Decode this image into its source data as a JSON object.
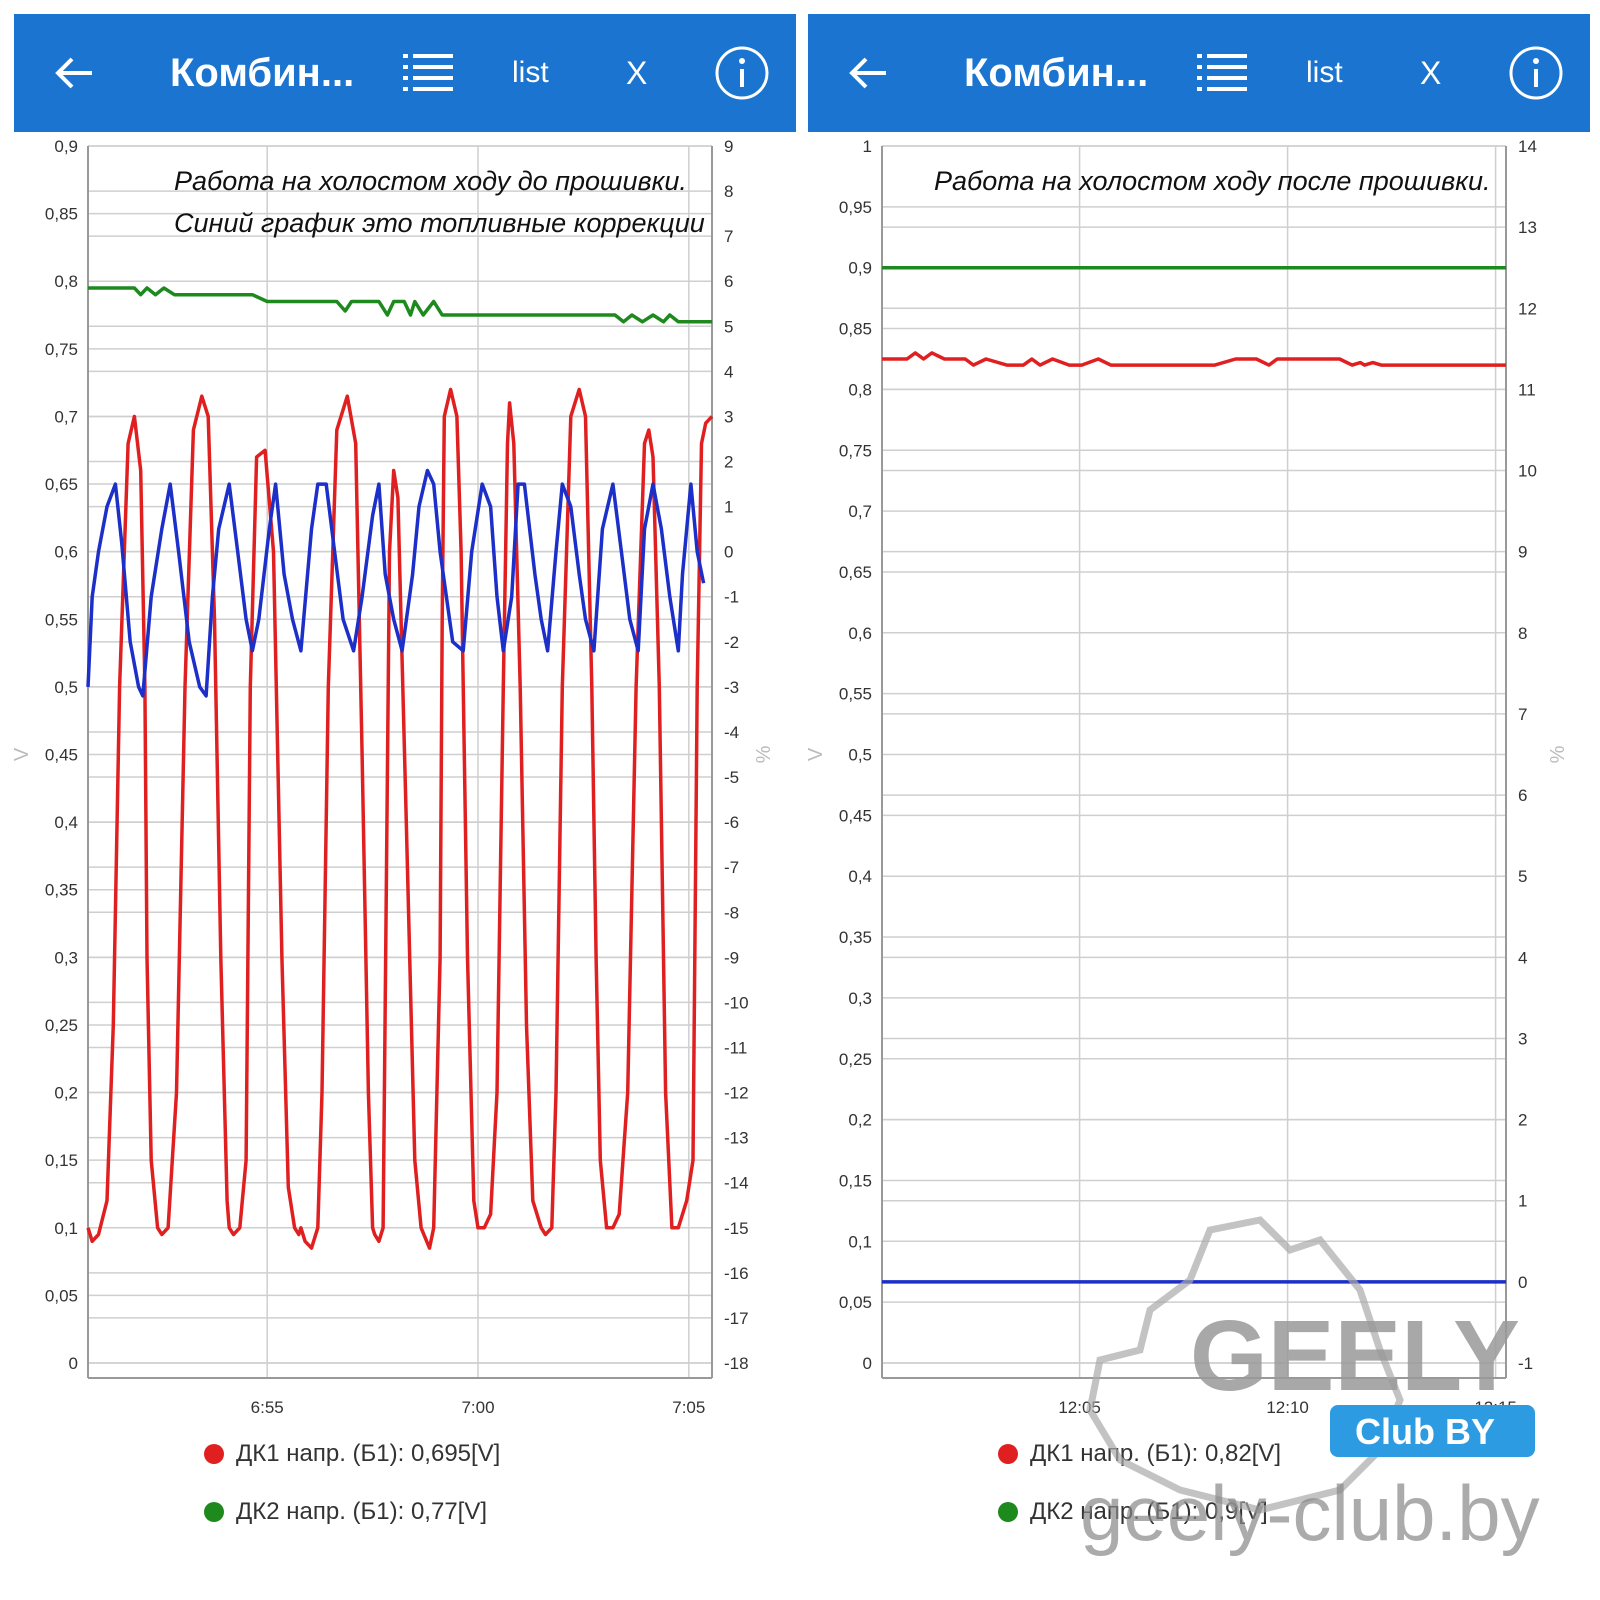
{
  "panels": [
    {
      "title": "Комбин...",
      "list_label": "list",
      "close_label": "X",
      "annotation": [
        "Работа на холостом ходу до прошивки.",
        "Синий график это топливные коррекции"
      ],
      "legend": [
        {
          "text": "ДК1 напр. (Б1): 0,695[V]",
          "color": "#e02020"
        },
        {
          "text": "ДК2 напр. (Б1): 0,77[V]",
          "color": "#1e8a1e"
        }
      ]
    },
    {
      "title": "Комбин...",
      "list_label": "list",
      "close_label": "X",
      "annotation": [
        "Работа на холостом ходу после прошивки."
      ],
      "legend": [
        {
          "text": "ДК1 напр. (Б1): 0,82[V]",
          "color": "#e02020"
        },
        {
          "text": "ДК2 напр. (Б1): 0,9[V]",
          "color": "#1e8a1e"
        }
      ]
    }
  ],
  "watermark": {
    "brand": "GEELY",
    "badge": "Club BY",
    "site": "geely-club.by"
  },
  "colors": {
    "appbar": "#1b75d0",
    "red": "#e02020",
    "green": "#1e8a1e",
    "blue": "#1c2fc8"
  },
  "chart_data": [
    {
      "type": "line",
      "x_unit": "minutes",
      "x_range": [
        6.5,
        21.3
      ],
      "x_ticks": [
        {
          "x": 10.75,
          "label": "6:55"
        },
        {
          "x": 15.75,
          "label": "7:00"
        },
        {
          "x": 20.75,
          "label": "7:05"
        }
      ],
      "y_left": {
        "label": "V",
        "range": [
          0,
          0.9
        ],
        "step": 0.05,
        "tick_labels": [
          "0",
          "0,05",
          "0,1",
          "0,15",
          "0,2",
          "0,25",
          "0,3",
          "0,35",
          "0,4",
          "0,45",
          "0,5",
          "0,55",
          "0,6",
          "0,65",
          "0,7",
          "0,75",
          "0,8",
          "0,85",
          "0,9"
        ]
      },
      "y_right": {
        "label": "%",
        "range": [
          -18,
          9
        ],
        "step": 1,
        "tick_labels": [
          "-18",
          "-17",
          "-16",
          "-15",
          "-14",
          "-13",
          "-12",
          "-11",
          "-10",
          "-9",
          "-8",
          "-7",
          "-6",
          "-5",
          "-4",
          "-3",
          "-2",
          "-1",
          "0",
          "1",
          "2",
          "3",
          "4",
          "5",
          "6",
          "7",
          "8",
          "9"
        ]
      },
      "series": [
        {
          "name": "ДК1 напр. (Б1)",
          "axis": "left",
          "color": "#e02020",
          "x": [
            6.5,
            6.6,
            6.75,
            6.95,
            7.1,
            7.25,
            7.45,
            7.6,
            7.75,
            7.85,
            7.9,
            8.0,
            8.15,
            8.25,
            8.4,
            8.6,
            8.8,
            9.0,
            9.2,
            9.35,
            9.5,
            9.65,
            9.8,
            9.85,
            9.95,
            10.1,
            10.25,
            10.35,
            10.5,
            10.7,
            10.9,
            11.1,
            11.25,
            11.4,
            11.5,
            11.55,
            11.65,
            11.8,
            11.95,
            12.05,
            12.2,
            12.4,
            12.65,
            12.85,
            13.0,
            13.15,
            13.25,
            13.3,
            13.4,
            13.5,
            13.65,
            13.75,
            13.85,
            14.05,
            14.25,
            14.4,
            14.6,
            14.7,
            14.85,
            14.9,
            14.95,
            15.1,
            15.25,
            15.35,
            15.5,
            15.65,
            15.75,
            15.9,
            16.05,
            16.2,
            16.35,
            16.45,
            16.5,
            16.6,
            16.75,
            16.9,
            17.05,
            17.25,
            17.35,
            17.5,
            17.6,
            17.75,
            17.95,
            18.15,
            18.3,
            18.45,
            18.55,
            18.65,
            18.8,
            18.95,
            19.1,
            19.3,
            19.5,
            19.7,
            19.8,
            19.9,
            20.05,
            20.2,
            20.35,
            20.5,
            20.7,
            20.85,
            20.95,
            21.05,
            21.15,
            21.3
          ],
          "y": [
            0.1,
            0.09,
            0.095,
            0.12,
            0.25,
            0.5,
            0.68,
            0.7,
            0.66,
            0.5,
            0.3,
            0.15,
            0.1,
            0.095,
            0.1,
            0.2,
            0.5,
            0.69,
            0.715,
            0.7,
            0.55,
            0.3,
            0.12,
            0.1,
            0.095,
            0.1,
            0.15,
            0.5,
            0.67,
            0.675,
            0.6,
            0.3,
            0.13,
            0.1,
            0.095,
            0.1,
            0.09,
            0.085,
            0.1,
            0.2,
            0.5,
            0.69,
            0.715,
            0.68,
            0.45,
            0.2,
            0.1,
            0.095,
            0.09,
            0.1,
            0.6,
            0.66,
            0.64,
            0.4,
            0.15,
            0.1,
            0.085,
            0.1,
            0.3,
            0.55,
            0.7,
            0.72,
            0.7,
            0.6,
            0.3,
            0.12,
            0.1,
            0.1,
            0.11,
            0.2,
            0.5,
            0.68,
            0.71,
            0.68,
            0.5,
            0.25,
            0.12,
            0.1,
            0.095,
            0.1,
            0.2,
            0.5,
            0.7,
            0.72,
            0.7,
            0.5,
            0.3,
            0.15,
            0.1,
            0.1,
            0.11,
            0.2,
            0.5,
            0.68,
            0.69,
            0.67,
            0.5,
            0.2,
            0.1,
            0.1,
            0.12,
            0.15,
            0.5,
            0.68,
            0.695,
            0.7
          ]
        },
        {
          "name": "ДК2 напр. (Б1)",
          "axis": "left",
          "color": "#1e8a1e",
          "x": [
            6.5,
            7.6,
            7.75,
            7.9,
            8.1,
            8.3,
            8.55,
            10.4,
            10.75,
            12.4,
            12.6,
            12.75,
            13.4,
            13.6,
            13.75,
            14.0,
            14.15,
            14.25,
            14.45,
            14.7,
            14.9,
            19.0,
            19.2,
            19.4,
            19.65,
            19.9,
            20.15,
            20.3,
            20.5,
            21.3
          ],
          "y": [
            0.795,
            0.795,
            0.79,
            0.795,
            0.79,
            0.795,
            0.79,
            0.79,
            0.785,
            0.785,
            0.778,
            0.785,
            0.785,
            0.775,
            0.785,
            0.785,
            0.775,
            0.785,
            0.775,
            0.785,
            0.775,
            0.775,
            0.77,
            0.775,
            0.77,
            0.775,
            0.77,
            0.775,
            0.77,
            0.77
          ]
        },
        {
          "name": "",
          "axis": "right",
          "color": "#1c2fc8",
          "x": [
            6.5,
            6.6,
            6.75,
            6.95,
            7.15,
            7.3,
            7.5,
            7.7,
            7.8,
            8.0,
            8.25,
            8.45,
            8.65,
            8.9,
            9.15,
            9.3,
            9.45,
            9.6,
            9.85,
            10.05,
            10.25,
            10.4,
            10.55,
            10.8,
            10.95,
            11.15,
            11.35,
            11.55,
            11.8,
            11.95,
            12.15,
            12.35,
            12.55,
            12.8,
            13.0,
            13.25,
            13.4,
            13.55,
            13.75,
            13.95,
            14.2,
            14.35,
            14.55,
            14.7,
            14.85,
            15.0,
            15.15,
            15.4,
            15.6,
            15.85,
            16.05,
            16.2,
            16.35,
            16.55,
            16.7,
            16.85,
            17.1,
            17.25,
            17.4,
            17.6,
            17.75,
            17.95,
            18.15,
            18.3,
            18.5,
            18.7,
            18.95,
            19.15,
            19.35,
            19.55,
            19.7,
            19.9,
            20.1,
            20.3,
            20.5,
            20.6,
            20.8,
            20.95,
            21.1
          ],
          "y": [
            -3.0,
            -1.0,
            0.0,
            1.0,
            1.5,
            0.2,
            -2.0,
            -3.0,
            -3.2,
            -1.0,
            0.5,
            1.5,
            0.0,
            -2.0,
            -3.0,
            -3.2,
            -1.0,
            0.5,
            1.5,
            0.0,
            -1.5,
            -2.2,
            -1.5,
            0.5,
            1.5,
            -0.5,
            -1.5,
            -2.2,
            0.5,
            1.5,
            1.5,
            0.0,
            -1.5,
            -2.2,
            -1.0,
            0.8,
            1.5,
            -0.5,
            -1.5,
            -2.2,
            -0.5,
            1.0,
            1.8,
            1.5,
            0.0,
            -1.0,
            -2.0,
            -2.2,
            0.0,
            1.5,
            1.0,
            -1.0,
            -2.2,
            -1.0,
            1.5,
            1.5,
            -0.5,
            -1.5,
            -2.2,
            0.0,
            1.5,
            1.0,
            -0.5,
            -1.5,
            -2.2,
            0.5,
            1.5,
            0.0,
            -1.5,
            -2.2,
            0.5,
            1.5,
            0.5,
            -1.0,
            -2.2,
            -0.5,
            1.5,
            0.0,
            -0.7
          ]
        }
      ]
    },
    {
      "type": "line",
      "x_unit": "minutes",
      "x_range": [
        0,
        15.0
      ],
      "x_ticks": [
        {
          "x": 4.75,
          "label": "12:05"
        },
        {
          "x": 9.75,
          "label": "12:10"
        },
        {
          "x": 14.75,
          "label": "12:15"
        }
      ],
      "y_left": {
        "label": "V",
        "range": [
          0,
          1.0
        ],
        "step": 0.05,
        "tick_labels": [
          "0",
          "0,05",
          "0,1",
          "0,15",
          "0,2",
          "0,25",
          "0,3",
          "0,35",
          "0,4",
          "0,45",
          "0,5",
          "0,55",
          "0,6",
          "0,65",
          "0,7",
          "0,75",
          "0,8",
          "0,85",
          "0,9",
          "0,95",
          "1"
        ]
      },
      "y_right": {
        "label": "%",
        "range": [
          -1,
          14
        ],
        "step": 1,
        "tick_labels": [
          "-1",
          "0",
          "1",
          "2",
          "3",
          "4",
          "5",
          "6",
          "7",
          "8",
          "9",
          "10",
          "11",
          "12",
          "13",
          "14"
        ]
      },
      "series": [
        {
          "name": "ДК1 напр. (Б1)",
          "axis": "left",
          "color": "#e02020",
          "x": [
            0,
            0.6,
            0.8,
            1.0,
            1.2,
            1.5,
            2.0,
            2.2,
            2.5,
            3.0,
            3.4,
            3.6,
            3.8,
            4.1,
            4.5,
            4.8,
            5.2,
            5.5,
            6.0,
            8.0,
            8.5,
            9.0,
            9.3,
            9.5,
            10.0,
            11.0,
            11.3,
            11.5,
            11.6,
            11.8,
            12.0,
            15.0
          ],
          "y": [
            0.825,
            0.825,
            0.83,
            0.825,
            0.83,
            0.825,
            0.825,
            0.82,
            0.825,
            0.82,
            0.82,
            0.825,
            0.82,
            0.825,
            0.82,
            0.82,
            0.825,
            0.82,
            0.82,
            0.82,
            0.825,
            0.825,
            0.82,
            0.825,
            0.825,
            0.825,
            0.82,
            0.822,
            0.82,
            0.822,
            0.82,
            0.82
          ]
        },
        {
          "name": "ДК2 напр. (Б1)",
          "axis": "left",
          "color": "#1e8a1e",
          "x": [
            0,
            15.0
          ],
          "y": [
            0.9,
            0.9
          ]
        },
        {
          "name": "",
          "axis": "right",
          "color": "#1c2fc8",
          "x": [
            0,
            15.0
          ],
          "y": [
            0,
            0
          ]
        }
      ]
    }
  ]
}
